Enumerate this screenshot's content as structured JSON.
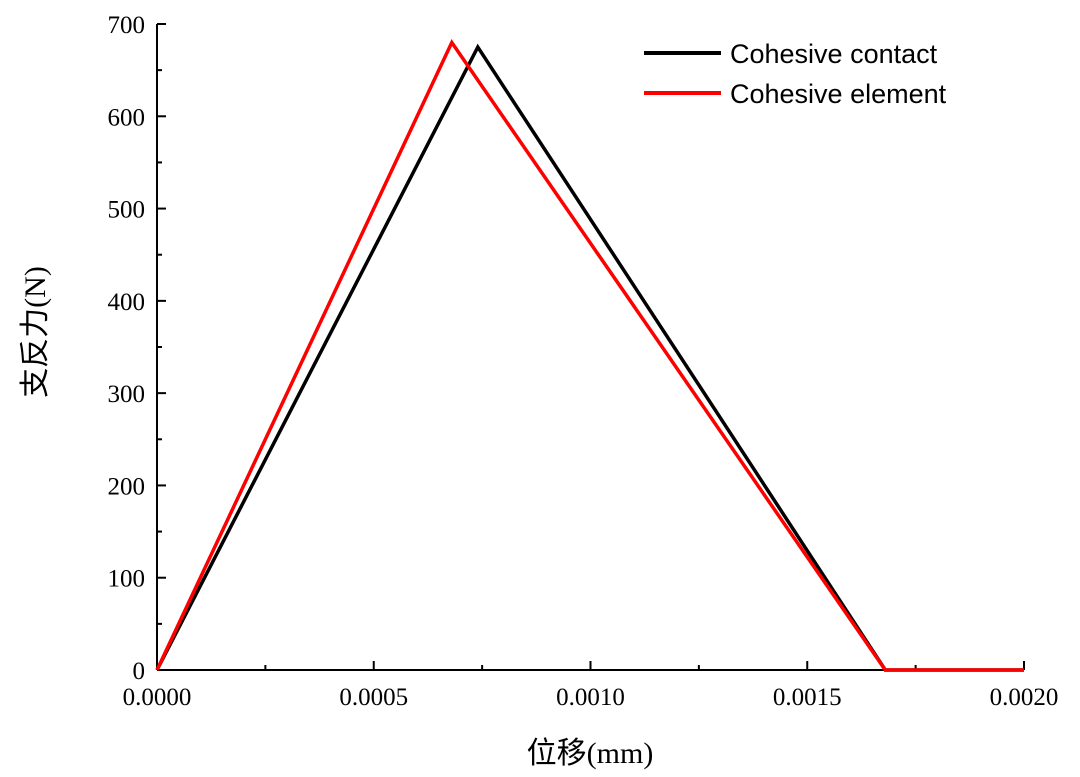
{
  "chart_data": {
    "type": "line",
    "title": "",
    "xlabel": "位移(mm)",
    "ylabel": "支反力(N)",
    "xlim": [
      0,
      0.002
    ],
    "ylim": [
      0,
      700
    ],
    "x_ticks": [
      0,
      0.0005,
      0.001,
      0.0015,
      0.002
    ],
    "x_tick_labels": [
      "0.0000",
      "0.0005",
      "0.0010",
      "0.0015",
      "0.0020"
    ],
    "y_ticks": [
      0,
      100,
      200,
      300,
      400,
      500,
      600,
      700
    ],
    "y_tick_labels": [
      "0",
      "100",
      "200",
      "300",
      "400",
      "500",
      "600",
      "700"
    ],
    "grid": false,
    "legend_position": "top-right",
    "series": [
      {
        "name": "Cohesive contact",
        "color": "#000000",
        "points": [
          [
            0,
            0
          ],
          [
            0.00074,
            675
          ],
          [
            0.00168,
            0
          ],
          [
            0.002,
            0
          ]
        ]
      },
      {
        "name": "Cohesive element",
        "color": "#ff0000",
        "points": [
          [
            0,
            0
          ],
          [
            0.00068,
            680
          ],
          [
            0.00168,
            0
          ],
          [
            0.002,
            0
          ]
        ]
      }
    ]
  }
}
